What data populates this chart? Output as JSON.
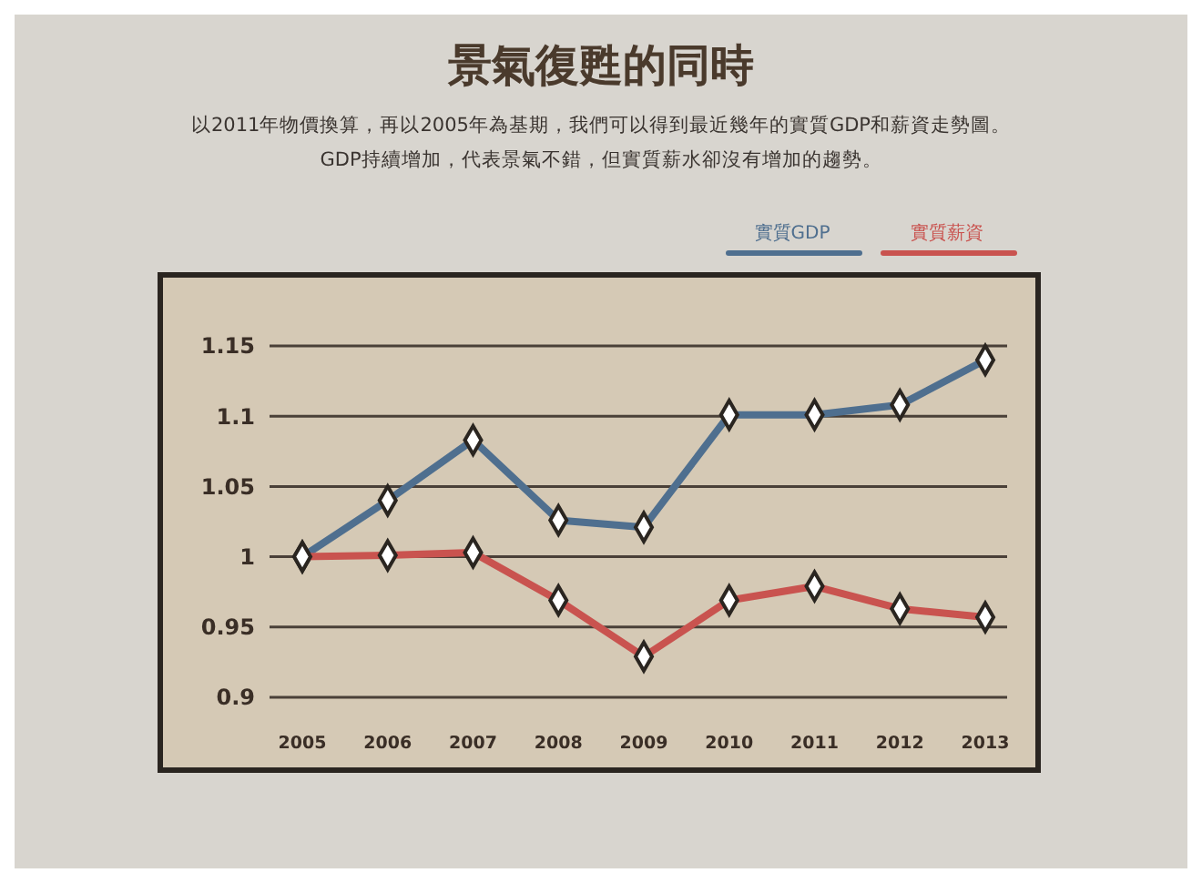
{
  "chart_data": {
    "type": "line",
    "title": "景氣復甦的同時",
    "subtitle": "以2011年物價換算，再以2005年為基期，我們可以得到最近幾年的實質GDP和薪資走勢圖。\nGDP持續增加，代表景氣不錯，但實質薪水卻沒有增加的趨勢。",
    "categories": [
      "2005",
      "2006",
      "2007",
      "2008",
      "2009",
      "2010",
      "2011",
      "2012",
      "2013"
    ],
    "series": [
      {
        "name": "實質GDP",
        "color": "#4f6f8f",
        "values": [
          1,
          1.04,
          1.083,
          1.026,
          1.021,
          1.101,
          1.101,
          1.108,
          1.14
        ]
      },
      {
        "name": "實質薪資",
        "color": "#c9534f",
        "values": [
          1,
          1.001,
          1.003,
          0.969,
          0.929,
          0.969,
          0.979,
          0.963,
          0.957
        ]
      }
    ],
    "ylim": [
      0.9,
      1.15
    ],
    "yticks": [
      0.9,
      0.95,
      1,
      1.05,
      1.1,
      1.15
    ],
    "grid": "y",
    "legend": "top right",
    "marker": "diamond",
    "line_style": "solid"
  }
}
